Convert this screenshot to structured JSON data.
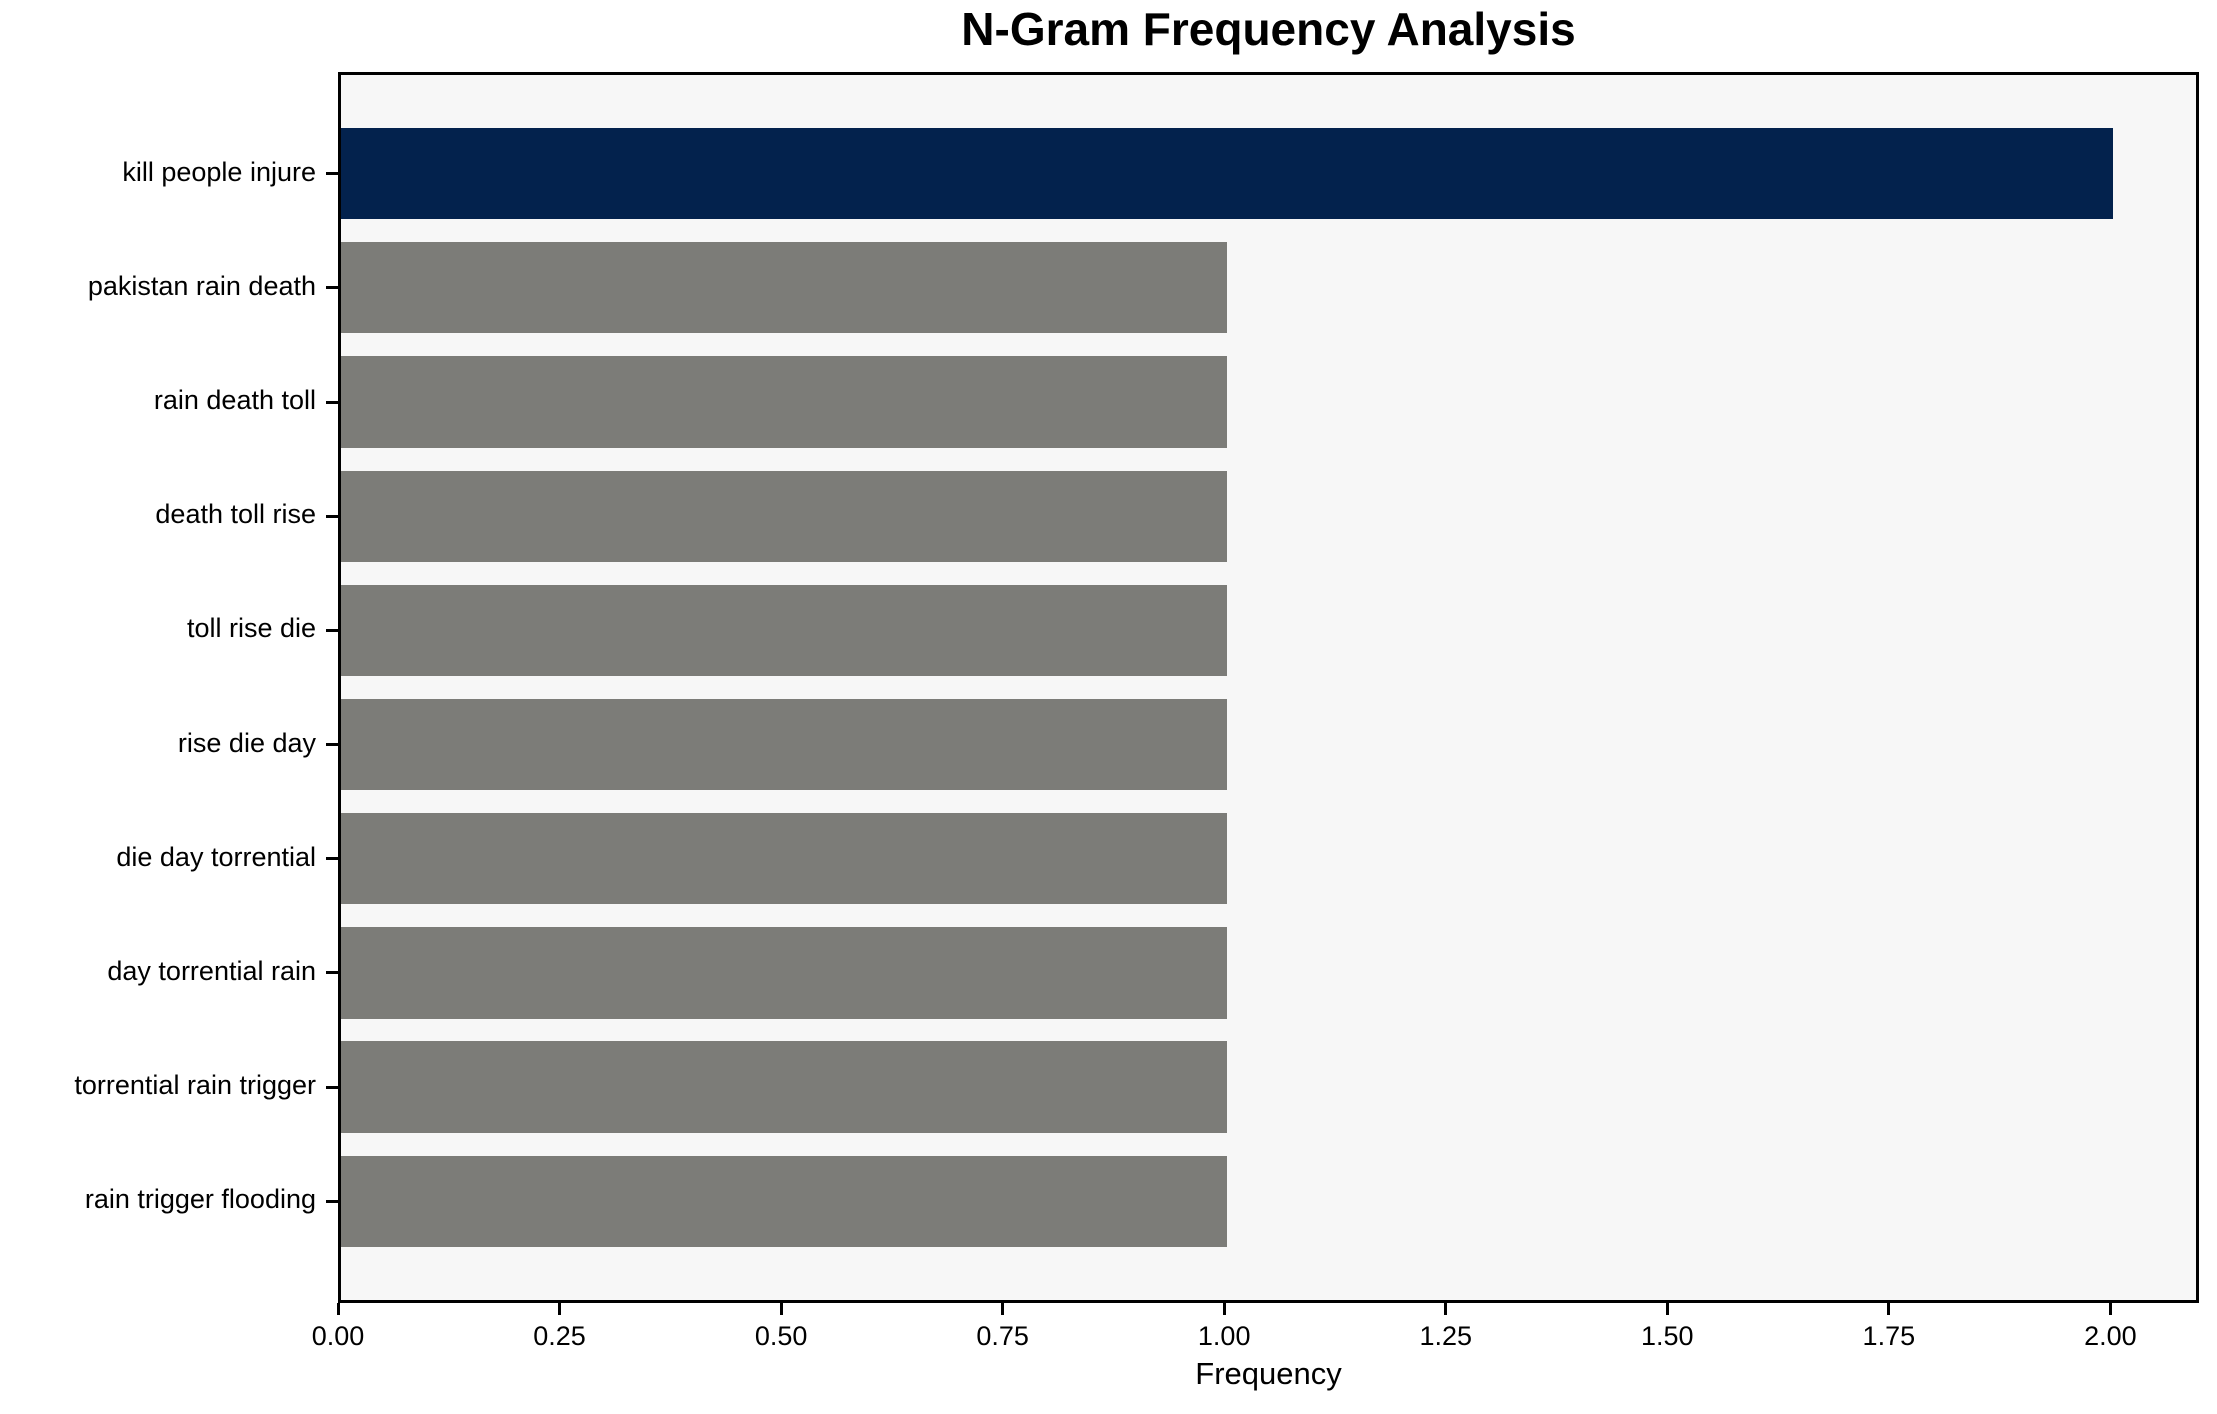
{
  "title": "N-Gram Frequency Analysis",
  "chart_data": {
    "type": "bar",
    "orientation": "horizontal",
    "title": "N-Gram Frequency Analysis",
    "categories": [
      "kill people injure",
      "pakistan rain death",
      "rain death toll",
      "death toll rise",
      "toll rise die",
      "rise die day",
      "die day torrential",
      "day torrential rain",
      "torrential rain trigger",
      "rain trigger flooding"
    ],
    "values": [
      2,
      1,
      1,
      1,
      1,
      1,
      1,
      1,
      1,
      1
    ],
    "bar_colors": [
      "#03224d",
      "#7c7c78",
      "#7c7c78",
      "#7c7c78",
      "#7c7c78",
      "#7c7c78",
      "#7c7c78",
      "#7c7c78",
      "#7c7c78",
      "#7c7c78"
    ],
    "highlight_color": "#03224d",
    "default_bar_color": "#7c7c78",
    "xlabel": "Frequency",
    "ylabel": "",
    "xlim": [
      0,
      2.1
    ],
    "xticks": [
      0.0,
      0.25,
      0.5,
      0.75,
      1.0,
      1.25,
      1.5,
      1.75,
      2.0
    ],
    "xtick_labels": [
      "0.00",
      "0.25",
      "0.50",
      "0.75",
      "1.00",
      "1.25",
      "1.50",
      "1.75",
      "2.00"
    ],
    "grid": false,
    "plot_background": "#f7f7f7",
    "legend": null
  }
}
